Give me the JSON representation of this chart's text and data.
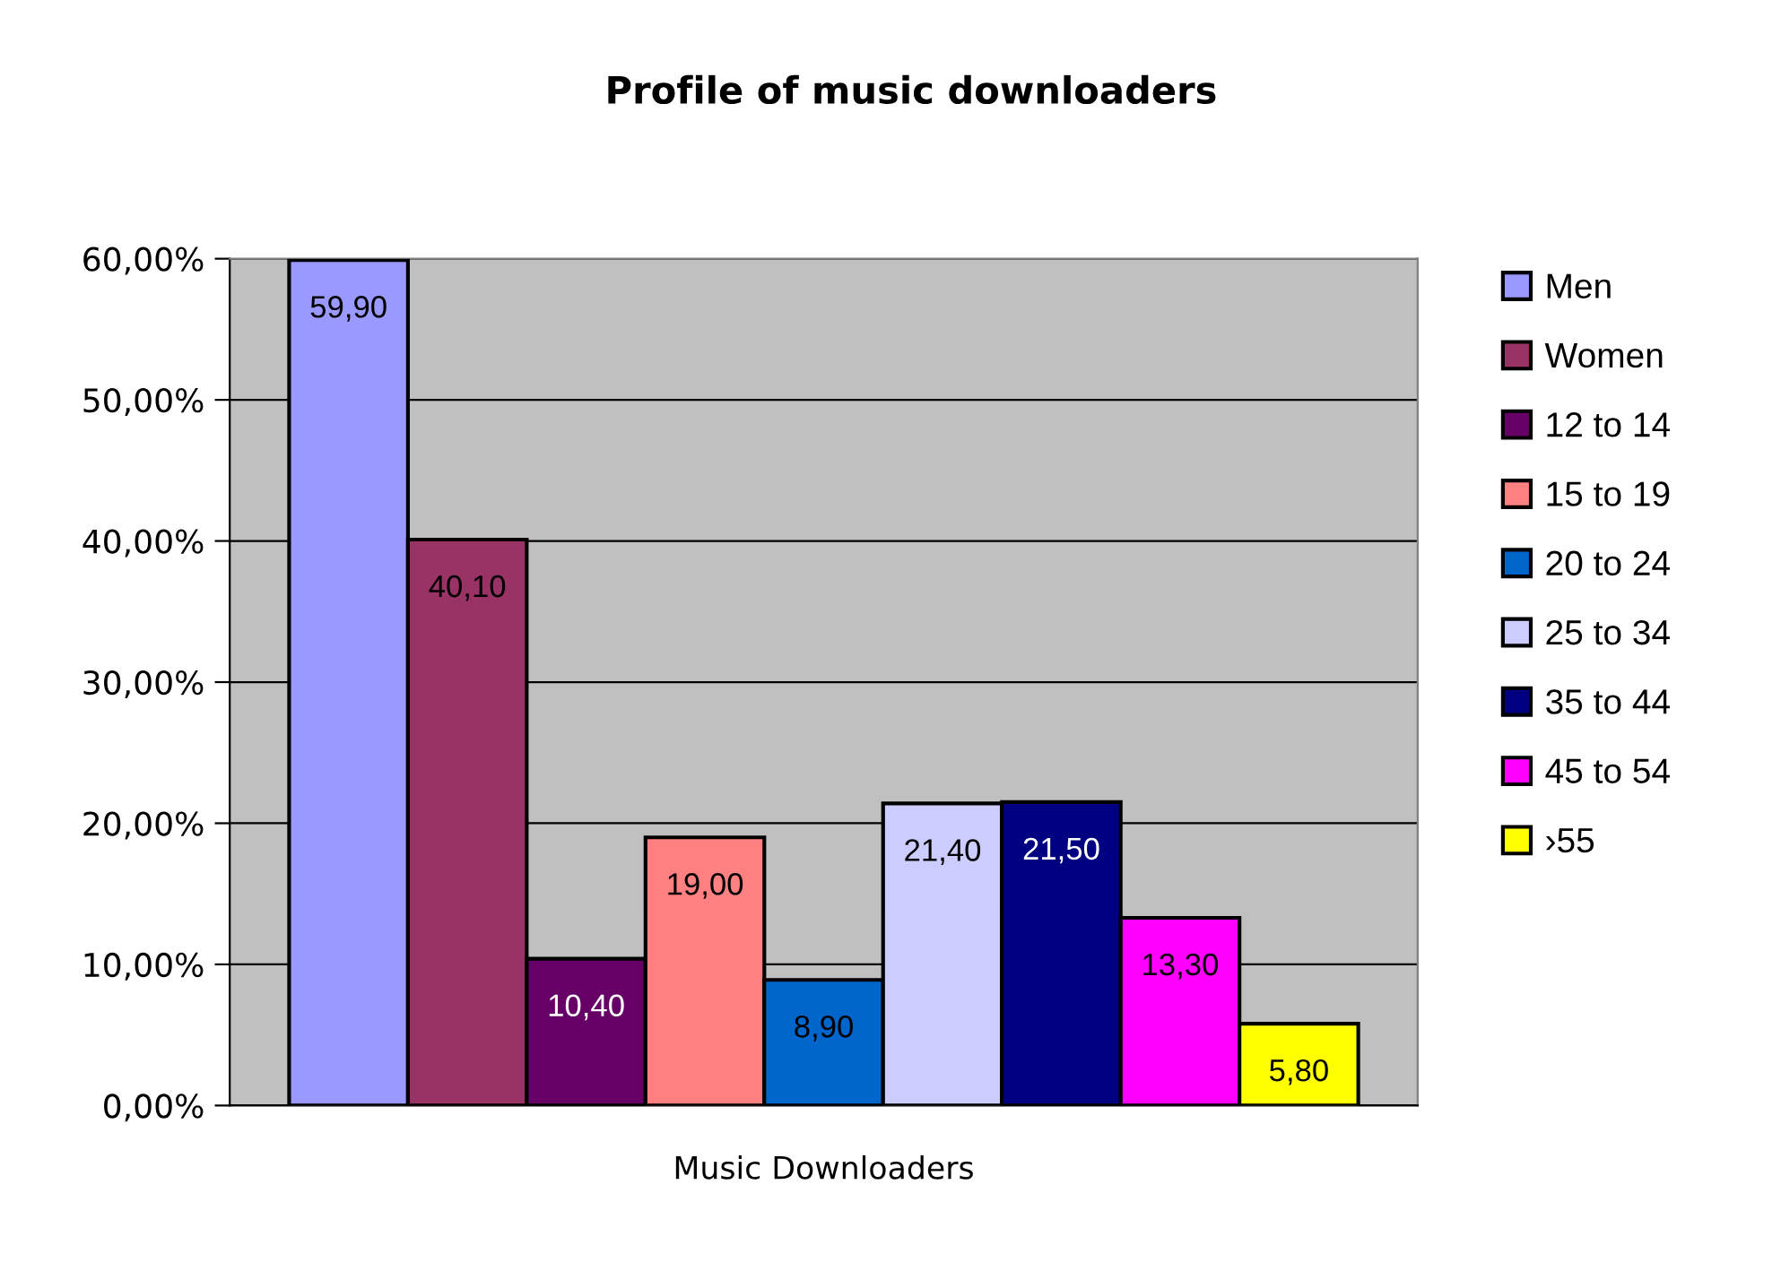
{
  "chart_data": {
    "type": "bar",
    "title": "Profile of music downloaders",
    "categories": [
      "Music Downloaders"
    ],
    "series": [
      {
        "name": "Men",
        "color": "#9999ff",
        "values": [
          59.9
        ],
        "value_labels": [
          "59,90"
        ]
      },
      {
        "name": "Women",
        "color": "#993366",
        "values": [
          40.1
        ],
        "value_labels": [
          "40,10"
        ]
      },
      {
        "name": "12 to 14",
        "color": "#660066",
        "values": [
          10.4
        ],
        "value_labels": [
          "10,40"
        ]
      },
      {
        "name": "15 to 19",
        "color": "#ff8080",
        "values": [
          19.0
        ],
        "value_labels": [
          "19,00"
        ]
      },
      {
        "name": "20 to 24",
        "color": "#0066cc",
        "values": [
          8.9
        ],
        "value_labels": [
          "8,90"
        ]
      },
      {
        "name": "25 to 34",
        "color": "#ccccff",
        "values": [
          21.4
        ],
        "value_labels": [
          "21,40"
        ]
      },
      {
        "name": "35 to 44",
        "color": "#000080",
        "values": [
          21.5
        ],
        "value_labels": [
          "21,50"
        ]
      },
      {
        "name": "45 to 54",
        "color": "#ff00ff",
        "values": [
          13.3
        ],
        "value_labels": [
          "13,30"
        ]
      },
      {
        "name": "›55",
        "color": "#ffff00",
        "values": [
          5.8
        ],
        "value_labels": [
          "5,80"
        ]
      }
    ],
    "ylim": [
      0,
      60
    ],
    "yticks": [
      {
        "value": 0,
        "label": "0,00%"
      },
      {
        "value": 10,
        "label": "10,00%"
      },
      {
        "value": 20,
        "label": "20,00%"
      },
      {
        "value": 30,
        "label": "30,00%"
      },
      {
        "value": 40,
        "label": "40,00%"
      },
      {
        "value": 50,
        "label": "50,00%"
      },
      {
        "value": 60,
        "label": "60,00%"
      }
    ],
    "grid": "y",
    "legend": "right"
  }
}
